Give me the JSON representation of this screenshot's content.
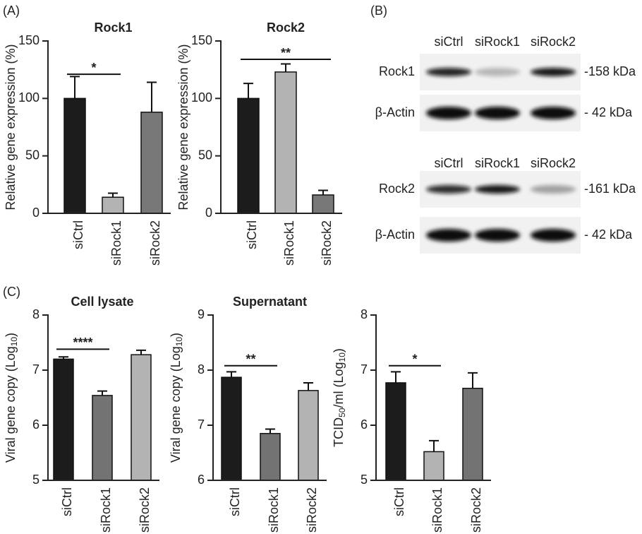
{
  "panel_labels": [
    "(A)",
    "(B)",
    "(C)"
  ],
  "chart_data": [
    {
      "type": "bar",
      "title": "Rock1",
      "ylabel": [
        "Relative gene expression (%)"
      ],
      "categories": [
        "siCtrl",
        "siRock1",
        "siRock2"
      ],
      "values": [
        100,
        14,
        88
      ],
      "errors": [
        19,
        3.5,
        26
      ],
      "colors": [
        "#1c1c1c",
        "#b3b3b3",
        "#787878"
      ],
      "ylim": [
        0,
        150
      ],
      "yticks": [
        0,
        50,
        100,
        150
      ],
      "annotation": {
        "text": "*",
        "y": 121,
        "from": "siCtrl",
        "to": "siRock1"
      }
    },
    {
      "type": "bar",
      "title": "Rock2",
      "ylabel": [
        "Relative gene expression (%)"
      ],
      "categories": [
        "siCtrl",
        "siRock1",
        "siRock2"
      ],
      "values": [
        100,
        123,
        16
      ],
      "errors": [
        13,
        7,
        4
      ],
      "colors": [
        "#1c1c1c",
        "#b3b3b3",
        "#787878"
      ],
      "ylim": [
        0,
        150
      ],
      "yticks": [
        0,
        50,
        100,
        150
      ],
      "annotation": {
        "text": "**",
        "y": 134,
        "from": "siCtrl",
        "to": "siRock2"
      }
    },
    {
      "type": "bar",
      "title": "Cell lysate",
      "ylabel": [
        "Viral gene copy (Log",
        "10",
        ")"
      ],
      "categories": [
        "siCtrl",
        "siRock1",
        "siRock2"
      ],
      "values": [
        7.2,
        6.54,
        7.28
      ],
      "errors": [
        0.04,
        0.08,
        0.08
      ],
      "colors": [
        "#1c1c1c",
        "#737373",
        "#b3b3b3"
      ],
      "ylim": [
        5,
        8
      ],
      "yticks": [
        5,
        6,
        7,
        8
      ],
      "annotation": {
        "text": "****",
        "y": 7.38,
        "from": "siCtrl",
        "to": "siRock1"
      }
    },
    {
      "type": "bar",
      "title": "Supernatant",
      "ylabel": [
        "Viral gene copy (Log",
        "10",
        ")"
      ],
      "categories": [
        "siCtrl",
        "siRock1",
        "siRock2"
      ],
      "values": [
        7.87,
        6.85,
        7.63
      ],
      "errors": [
        0.1,
        0.08,
        0.14
      ],
      "colors": [
        "#1c1c1c",
        "#737373",
        "#b3b3b3"
      ],
      "ylim": [
        6,
        9
      ],
      "yticks": [
        6,
        7,
        8,
        9
      ],
      "annotation": {
        "text": "**",
        "y": 8.08,
        "from": "siCtrl",
        "to": "siRock1"
      }
    },
    {
      "type": "bar",
      "ylabel": [
        "TCID",
        "50",
        "/ml (Log",
        "10",
        ")"
      ],
      "categories": [
        "siCtrl",
        "siRock1",
        "siRock2"
      ],
      "values": [
        6.77,
        5.52,
        6.67
      ],
      "errors": [
        0.2,
        0.2,
        0.28
      ],
      "colors": [
        "#1c1c1c",
        "#b3b3b3",
        "#737373"
      ],
      "ylim": [
        5,
        8
      ],
      "yticks": [
        5,
        6,
        7,
        8
      ],
      "annotation": {
        "text": "*",
        "y": 7.08,
        "from": "siCtrl",
        "to": "siRock1"
      }
    }
  ],
  "blots": [
    {
      "lanes": [
        "siCtrl",
        "siRock1",
        "siRock2"
      ],
      "rows": [
        {
          "label": "Rock1",
          "size": "-158 kDa"
        },
        {
          "label": "β-Actin",
          "size": "- 42 kDa"
        }
      ]
    },
    {
      "lanes": [
        "siCtrl",
        "siRock1",
        "siRock2"
      ],
      "rows": [
        {
          "label": "Rock2",
          "size": "-161 kDa"
        },
        {
          "label": "β-Actin",
          "size": "- 42 kDa"
        }
      ]
    }
  ]
}
